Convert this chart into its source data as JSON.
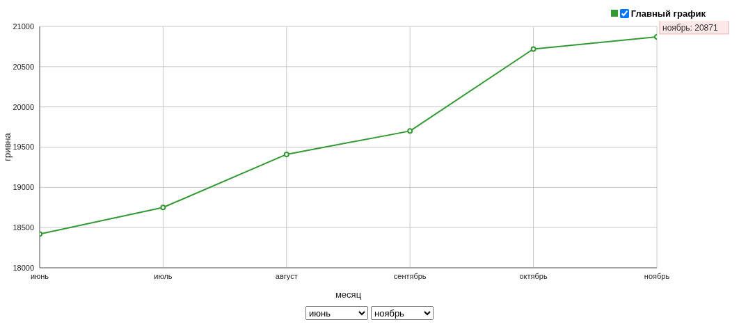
{
  "chart_data": {
    "type": "line",
    "xlabel": "месяц",
    "ylabel": "гривна",
    "categories": [
      "июнь",
      "июль",
      "август",
      "сентябрь",
      "октябрь",
      "ноябрь"
    ],
    "series": [
      {
        "name": "Главный график",
        "color": "#339933",
        "values": [
          18420,
          18750,
          19410,
          19700,
          20720,
          20871
        ]
      }
    ],
    "ylim": [
      18000,
      21000
    ],
    "yticks": [
      18000,
      18500,
      19000,
      19500,
      20000,
      20500,
      21000
    ],
    "grid": true,
    "legend": "top right",
    "marker": "circle",
    "line_style": "solid",
    "annotations": [
      {
        "text": "ноябрь: 20871",
        "x": "ноябрь",
        "y": 20871
      },
      "июнь",
      "ноябрь"
    ]
  }
}
